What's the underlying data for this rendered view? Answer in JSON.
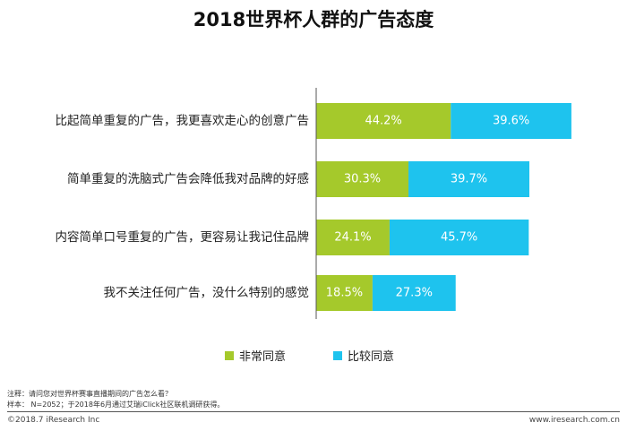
{
  "colors": {
    "series_1": "#a5c92b",
    "series_2": "#1ec3ee",
    "axis": "#555555"
  },
  "chart_data": {
    "type": "bar",
    "orientation": "horizontal",
    "stacked": true,
    "title": "2018世界杯人群的广告态度",
    "categories": [
      "比起简单重复的广告，我更喜欢走心的创意广告",
      "简单重复的洗脑式广告会降低我对品牌的好感",
      "内容简单口号重复的广告，更容易让我记住品牌",
      "我不关注任何广告，没什么特别的感觉"
    ],
    "series": [
      {
        "name": "非常同意",
        "values": [
          44.2,
          30.3,
          24.1,
          18.5
        ],
        "labels": [
          "44.2%",
          "30.3%",
          "24.1%",
          "18.5%"
        ]
      },
      {
        "name": "比较同意",
        "values": [
          39.6,
          39.7,
          45.7,
          27.3
        ],
        "labels": [
          "39.6%",
          "39.7%",
          "45.7%",
          "27.3%"
        ]
      }
    ],
    "xlim": [
      0,
      100
    ],
    "grid": false,
    "legend": "bottom"
  },
  "notes": {
    "note_line": "注释：请问您对世界杯赛事直播期间的广告怎么看？",
    "sample_line": "样本： N=2052；于2018年6月通过艾瑞iClick社区联机调研获得。"
  },
  "footer": {
    "copyright": "©2018.7 iResearch Inc",
    "website": "www.iresearch.com.cn"
  }
}
